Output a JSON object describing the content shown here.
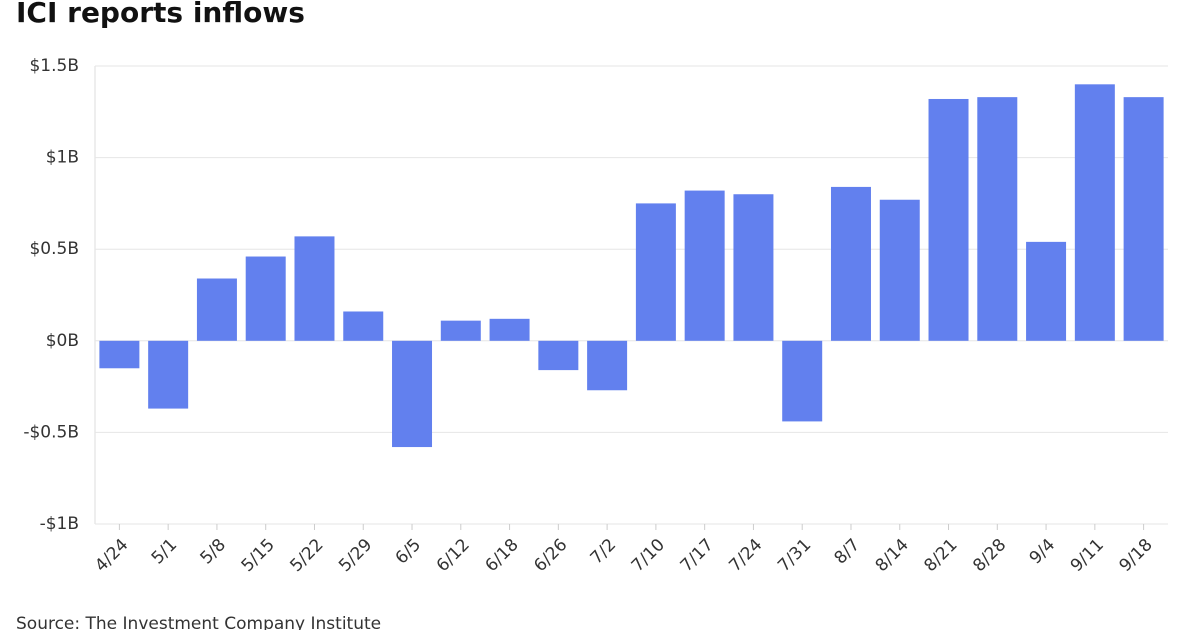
{
  "chart_data": {
    "type": "bar",
    "title": "ICI reports inflows",
    "source": "Source: The Investment Company Institute",
    "categories": [
      "4/24",
      "5/1",
      "5/8",
      "5/15",
      "5/22",
      "5/29",
      "6/5",
      "6/12",
      "6/18",
      "6/26",
      "7/2",
      "7/10",
      "7/17",
      "7/24",
      "7/31",
      "8/7",
      "8/14",
      "8/21",
      "8/28",
      "9/4",
      "9/11",
      "9/18"
    ],
    "values": [
      -0.15,
      -0.37,
      0.34,
      0.46,
      0.57,
      0.16,
      -0.58,
      0.11,
      0.12,
      -0.16,
      -0.27,
      0.75,
      0.82,
      0.8,
      -0.44,
      0.84,
      0.77,
      1.32,
      1.33,
      0.54,
      1.4,
      1.33
    ],
    "color": "#6280ee",
    "ylim": [
      -1,
      1.5
    ],
    "yticks": [
      {
        "value": -1,
        "label": "-$1B"
      },
      {
        "value": -0.5,
        "label": "-$0.5B"
      },
      {
        "value": 0,
        "label": "$0B"
      },
      {
        "value": 0.5,
        "label": "$0.5B"
      },
      {
        "value": 1,
        "label": "$1B"
      },
      {
        "value": 1.5,
        "label": "$1.5B"
      }
    ],
    "grid": true
  }
}
